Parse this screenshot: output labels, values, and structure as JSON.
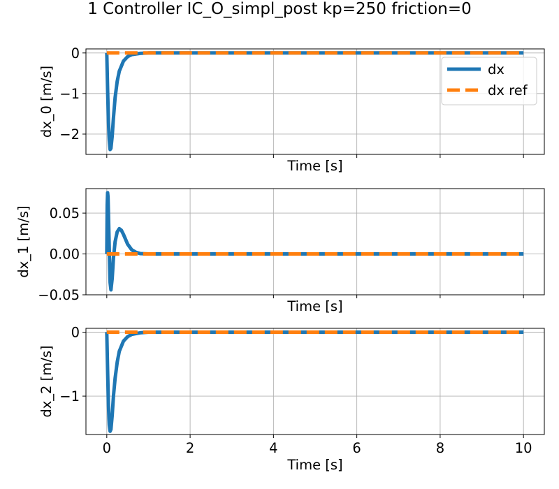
{
  "chart_data": {
    "title": "1 Controller IC_O_simpl_post kp=250 friction=0",
    "type": "line",
    "grid": true,
    "colors": {
      "dx": "#1f77b4",
      "dx_ref": "#ff7f0e"
    },
    "legend": {
      "placement": "top-right",
      "entries": [
        "dx",
        "dx ref"
      ]
    },
    "x_range": [
      -0.5,
      10.5
    ],
    "x_ticks": [
      0,
      2,
      4,
      6,
      8,
      10
    ],
    "x_tick_labels": [
      "0",
      "2",
      "4",
      "6",
      "8",
      "10"
    ],
    "subplots": [
      {
        "xlabel": "Time [s]",
        "ylabel": "dx_0 [m/s]",
        "ylim": [
          -2.5,
          0.1
        ],
        "y_ticks": [
          -2,
          -1,
          0
        ],
        "y_tick_labels": [
          "−2",
          "−1",
          "0"
        ],
        "series": [
          {
            "name": "dx",
            "x": [
              0,
              0.02,
              0.04,
              0.06,
              0.08,
              0.1,
              0.13,
              0.16,
              0.2,
              0.25,
              0.3,
              0.4,
              0.5,
              0.6,
              0.8,
              1.0,
              1.5,
              2,
              3,
              4,
              5,
              6,
              7,
              8,
              9,
              10
            ],
            "y": [
              0,
              -0.9,
              -1.7,
              -2.15,
              -2.38,
              -2.35,
              -2.05,
              -1.6,
              -1.1,
              -0.7,
              -0.45,
              -0.2,
              -0.09,
              -0.04,
              -0.01,
              0,
              0,
              0,
              0,
              0,
              0,
              0,
              0,
              0,
              0,
              0
            ]
          },
          {
            "name": "dx ref",
            "x": [
              0,
              10
            ],
            "y": [
              0,
              0
            ]
          }
        ]
      },
      {
        "xlabel": "Time [s]",
        "ylabel": "dx_1 [m/s]",
        "ylim": [
          -0.05,
          0.08
        ],
        "y_ticks": [
          -0.05,
          0,
          0.05
        ],
        "y_tick_labels": [
          "−0.05",
          "0.00",
          "0.05"
        ],
        "series": [
          {
            "name": "dx",
            "x": [
              0,
              0.01,
              0.02,
              0.03,
              0.04,
              0.06,
              0.08,
              0.1,
              0.13,
              0.16,
              0.2,
              0.25,
              0.3,
              0.35,
              0.4,
              0.5,
              0.6,
              0.7,
              0.8,
              1.0,
              1.2,
              2,
              3,
              4,
              5,
              6,
              7,
              8,
              9,
              10
            ],
            "y": [
              0,
              0.06,
              0.075,
              0.07,
              0.05,
              0.005,
              -0.035,
              -0.044,
              -0.03,
              -0.005,
              0.015,
              0.027,
              0.031,
              0.029,
              0.024,
              0.012,
              0.005,
              0.002,
              0.0005,
              0,
              0,
              0,
              0,
              0,
              0,
              0,
              0,
              0,
              0,
              0
            ]
          },
          {
            "name": "dx ref",
            "x": [
              0,
              10
            ],
            "y": [
              0,
              0
            ]
          }
        ]
      },
      {
        "xlabel": "Time [s]",
        "ylabel": "dx_2 [m/s]",
        "ylim": [
          -1.6,
          0.06
        ],
        "y_ticks": [
          -1,
          0
        ],
        "y_tick_labels": [
          "−1",
          "0"
        ],
        "series": [
          {
            "name": "dx",
            "x": [
              0,
              0.02,
              0.04,
              0.06,
              0.08,
              0.1,
              0.13,
              0.16,
              0.2,
              0.25,
              0.3,
              0.4,
              0.5,
              0.6,
              0.8,
              1.0,
              1.5,
              2,
              3,
              4,
              5,
              6,
              7,
              8,
              9,
              10
            ],
            "y": [
              0,
              -0.6,
              -1.15,
              -1.45,
              -1.55,
              -1.52,
              -1.3,
              -1.0,
              -0.72,
              -0.47,
              -0.3,
              -0.14,
              -0.07,
              -0.035,
              -0.01,
              0,
              0,
              0,
              0,
              0,
              0,
              0,
              0,
              0,
              0,
              0
            ]
          },
          {
            "name": "dx ref",
            "x": [
              0,
              10
            ],
            "y": [
              0,
              0
            ]
          }
        ]
      }
    ]
  }
}
